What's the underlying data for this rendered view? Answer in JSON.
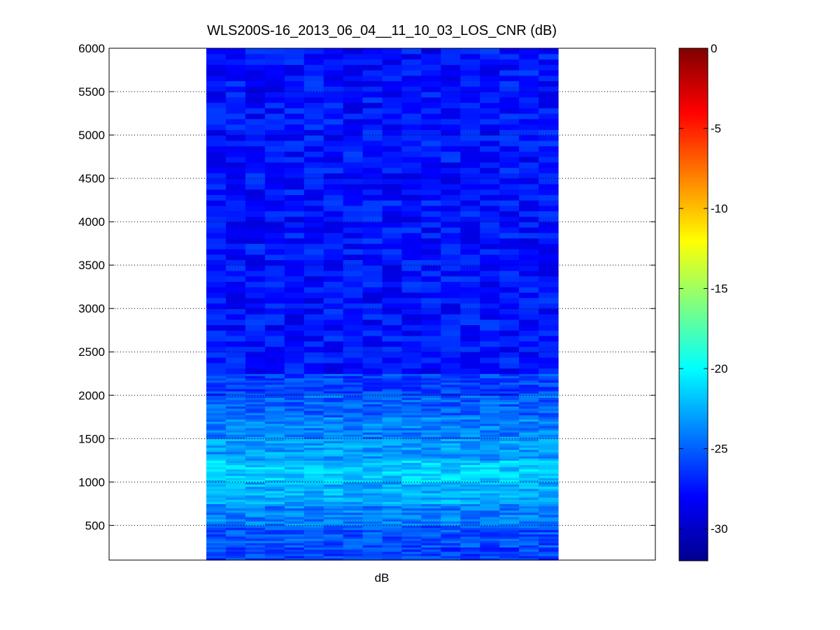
{
  "chart_data": {
    "type": "heatmap",
    "title": "WLS200S-16_2013_06_04__11_10_03_LOS_CNR (dB)",
    "xlabel": "dB",
    "ylabel": "",
    "ylim": [
      100,
      6000
    ],
    "yticks": [
      500,
      1000,
      1500,
      2000,
      2500,
      3000,
      3500,
      4000,
      4500,
      5000,
      5500,
      6000
    ],
    "grid": "dotted-horizontal",
    "colormap": "jet",
    "colorbar": {
      "range": [
        -32,
        0
      ],
      "ticks": [
        0,
        -5,
        -10,
        -15,
        -20,
        -25,
        -30
      ],
      "placement": "right"
    },
    "columns": 18,
    "rows": [
      {
        "range": [
          100,
          250
        ],
        "mean": -26.0
      },
      {
        "range": [
          250,
          500
        ],
        "mean": -25.5
      },
      {
        "range": [
          500,
          750
        ],
        "mean": -24.0
      },
      {
        "range": [
          750,
          1000
        ],
        "mean": -22.5
      },
      {
        "range": [
          1000,
          1250
        ],
        "mean": -21.5
      },
      {
        "range": [
          1250,
          1500
        ],
        "mean": -23.0
      },
      {
        "range": [
          1500,
          1750
        ],
        "mean": -24.0
      },
      {
        "range": [
          1750,
          2000
        ],
        "mean": -25.0
      },
      {
        "range": [
          2000,
          2250
        ],
        "mean": -26.0
      },
      {
        "range": [
          2250,
          6000
        ],
        "mean": -27.5
      }
    ]
  }
}
